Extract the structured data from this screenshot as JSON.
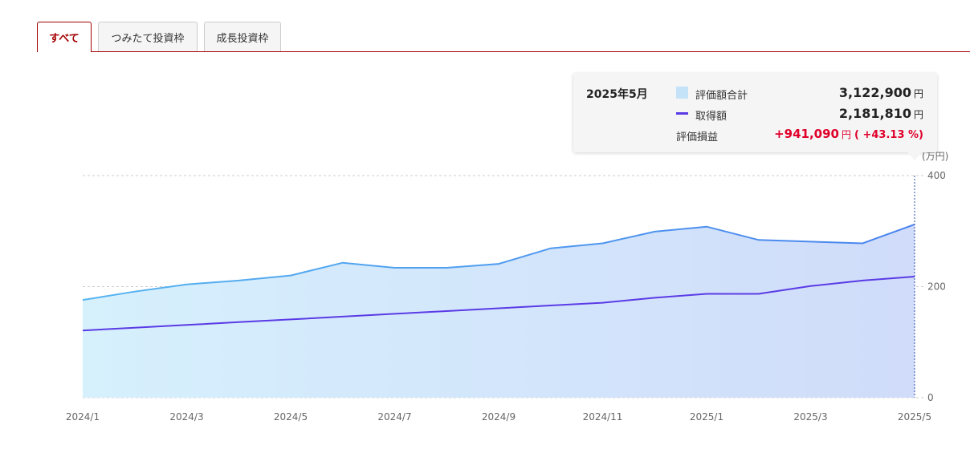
{
  "tabs": [
    {
      "label": "すべて",
      "active": true
    },
    {
      "label": "つみたて投資枠",
      "active": false
    },
    {
      "label": "成長投資枠",
      "active": false
    }
  ],
  "tooltip": {
    "date": "2025年5月",
    "market_value_label": "評価額合計",
    "market_value": "3,122,900",
    "cost_label": "取得額",
    "cost": "2,181,810",
    "unit": "円",
    "pl_label": "評価損益",
    "pl_value": "+941,090",
    "pl_pct": "( +43.13 %)"
  },
  "colors": {
    "accent": "#a40000",
    "market_line": "#4aa3ee",
    "market_fill_start": "#d6f0fc",
    "market_fill_end": "#d0dcfa",
    "cost_line": "#5a3be6",
    "positive": "#e0002a"
  },
  "chart_data": {
    "type": "area",
    "x": [
      "2024/1",
      "2024/2",
      "2024/3",
      "2024/4",
      "2024/5",
      "2024/6",
      "2024/7",
      "2024/8",
      "2024/9",
      "2024/10",
      "2024/11",
      "2024/12",
      "2025/1",
      "2025/2",
      "2025/3",
      "2025/4",
      "2025/5"
    ],
    "x_tick_labels": [
      "2024/1",
      "2024/3",
      "2024/5",
      "2024/7",
      "2024/9",
      "2024/11",
      "2025/1",
      "2025/3",
      "2025/5"
    ],
    "series": [
      {
        "name": "評価額合計",
        "values": [
          176,
          191,
          204,
          211,
          220,
          243,
          234,
          234,
          241,
          269,
          278,
          299,
          308,
          284,
          281,
          278,
          312
        ]
      },
      {
        "name": "取得額",
        "values": [
          121,
          126,
          131,
          136,
          141,
          146,
          151,
          156,
          161,
          166,
          171,
          180,
          187,
          187,
          201,
          211,
          218
        ]
      }
    ],
    "y_unit": "(万円)",
    "ylim": [
      0,
      400
    ],
    "y_ticks": [
      0,
      200,
      400
    ],
    "grid": true
  }
}
